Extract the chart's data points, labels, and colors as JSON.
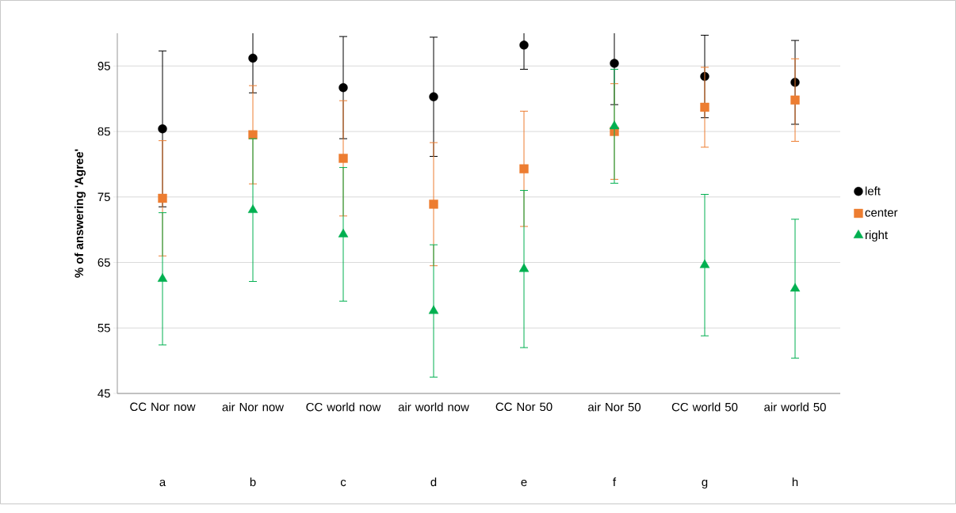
{
  "chart_data": {
    "type": "scatter",
    "ylabel": "% of answering 'Agree'",
    "categories": [
      "CC Nor now",
      "air Nor now",
      "CC world now",
      "air world now",
      "CC Nor 50",
      "air Nor 50",
      "CC world 50",
      "air world 50"
    ],
    "annotations": [
      "a",
      "b",
      "c",
      "d",
      "e",
      "f",
      "g",
      "h"
    ],
    "series": [
      {
        "name": "left",
        "color": "#000000",
        "marker": "circle",
        "values": [
          85.4,
          96.2,
          91.7,
          90.3,
          98.2,
          95.4,
          93.4,
          92.5
        ],
        "errors": [
          11.9,
          5.3,
          7.8,
          9.1,
          3.7,
          6.3,
          6.3,
          6.4
        ]
      },
      {
        "name": "center",
        "color": "#ed7d31",
        "marker": "square",
        "values": [
          74.8,
          84.5,
          80.9,
          73.9,
          79.3,
          85.0,
          88.7,
          89.8
        ],
        "errors": [
          8.8,
          7.5,
          8.8,
          9.4,
          8.8,
          7.3,
          6.1,
          6.3
        ]
      },
      {
        "name": "right",
        "color": "#00b050",
        "marker": "triangle",
        "values": [
          62.5,
          73.0,
          69.3,
          57.6,
          64.0,
          85.8,
          64.6,
          61.0
        ],
        "errors": [
          10.1,
          10.9,
          10.2,
          10.1,
          12.0,
          8.7,
          10.8,
          10.6
        ]
      }
    ],
    "ylim": [
      45,
      100
    ],
    "yticks": [
      45,
      55,
      65,
      75,
      85,
      95
    ],
    "grid": "y",
    "legend": "right"
  }
}
